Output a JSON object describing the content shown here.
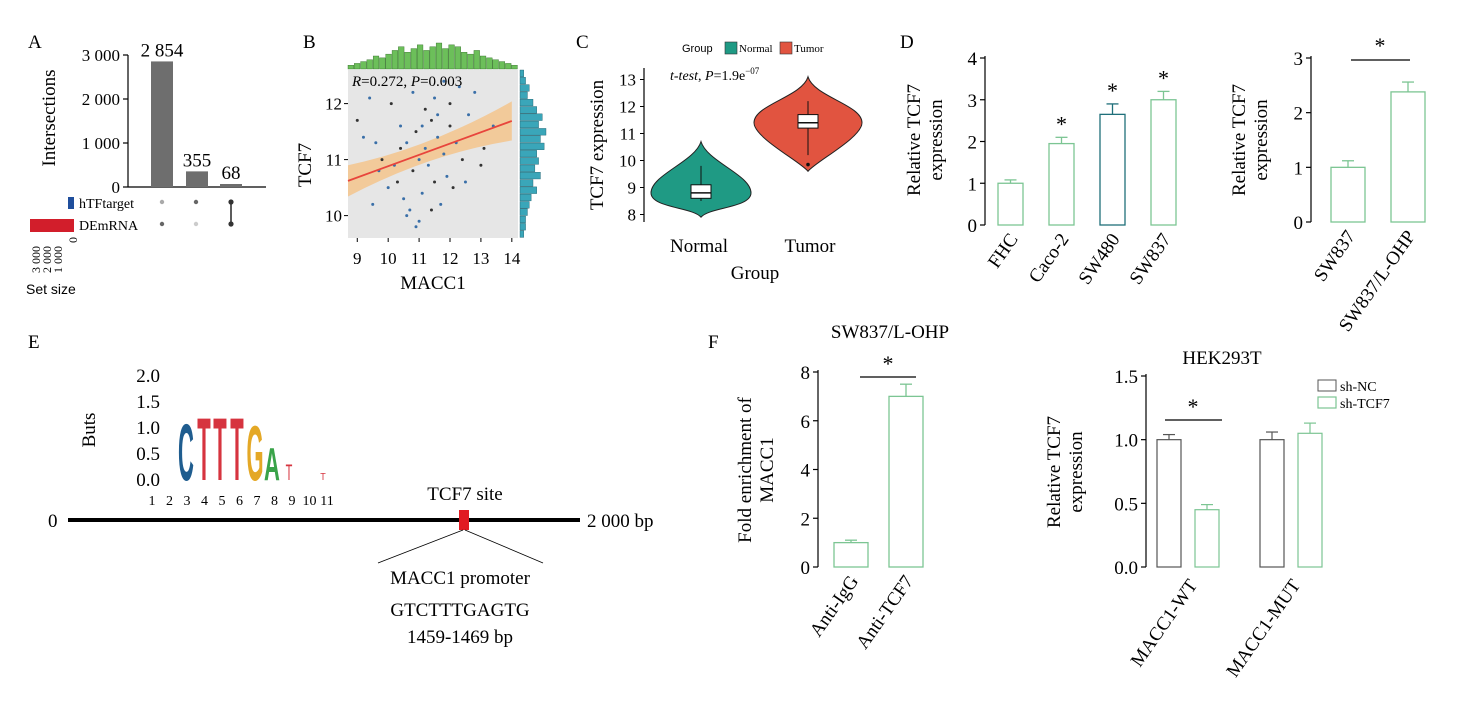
{
  "colors": {
    "bar_gray": "#6e6e6e",
    "htf_blue": "#1f4e9c",
    "demrna_red": "#d21e2b",
    "normal_teal": "#1f9a84",
    "tumor_red": "#e15440",
    "green_outline": "#7cc593",
    "dark_teal_outline": "#1f6f7a",
    "regression_red": "#e8453c",
    "ci_fill": "#f3c48c",
    "scatter_bg": "#e6e6e6",
    "hist_green": "#6cbf5a",
    "hist_teal": "#3aa6b9",
    "logo_C": "#1f5d8f",
    "logo_T": "#d6343f",
    "logo_G": "#e4a826",
    "logo_A": "#39a349",
    "tcf7_site": "#e11b22"
  },
  "chart_data": [
    {
      "panel": "A",
      "type": "bar",
      "ylabel": "Intersections",
      "ylim": [
        0,
        3000
      ],
      "yticks": [
        "0",
        "1 000",
        "2 000",
        "3 000"
      ],
      "categories": [
        "hTFtarget ∩ DEmRNA",
        "DEmRNA only",
        "hTFtarget only"
      ],
      "values": [
        2854,
        355,
        68
      ],
      "value_labels": [
        "2 854",
        "355",
        "68"
      ],
      "sets": [
        {
          "name": "hTFtarget",
          "size_color": "#1f4e9c"
        },
        {
          "name": "DEmRNA",
          "size_color": "#d21e2b"
        }
      ],
      "set_size_ticks": [
        "3 000",
        "2 000",
        "1 000",
        "0"
      ],
      "set_size_label": "Set size"
    },
    {
      "panel": "B",
      "type": "scatter",
      "xlabel": "MACC1",
      "ylabel": "TCF7",
      "xticks": [
        "9",
        "10",
        "11",
        "12",
        "13",
        "14"
      ],
      "yticks": [
        "10",
        "11",
        "12"
      ],
      "xlim": [
        8.7,
        14.2
      ],
      "ylim": [
        9.6,
        12.6
      ],
      "annotation": {
        "r": "0.272",
        "p": "0.003"
      },
      "regression": {
        "x": [
          8.7,
          14.0
        ],
        "y": [
          10.62,
          11.69
        ]
      },
      "points": [
        [
          10.1,
          12.0
        ],
        [
          10.4,
          11.6
        ],
        [
          10.6,
          11.3
        ],
        [
          10.9,
          11.5
        ],
        [
          11.0,
          11.0
        ],
        [
          11.2,
          11.2
        ],
        [
          11.4,
          11.7
        ],
        [
          11.6,
          11.4
        ],
        [
          11.8,
          11.1
        ],
        [
          12.0,
          11.6
        ],
        [
          12.2,
          11.3
        ],
        [
          11.5,
          12.1
        ],
        [
          10.3,
          10.6
        ],
        [
          10.5,
          10.3
        ],
        [
          10.7,
          10.1
        ],
        [
          10.8,
          10.8
        ],
        [
          11.1,
          10.4
        ],
        [
          11.3,
          10.9
        ],
        [
          11.5,
          10.6
        ],
        [
          11.7,
          10.2
        ],
        [
          11.9,
          10.7
        ],
        [
          12.1,
          10.5
        ],
        [
          10.2,
          10.9
        ],
        [
          10.0,
          10.5
        ],
        [
          9.8,
          11.0
        ],
        [
          9.6,
          11.3
        ],
        [
          9.2,
          11.4
        ],
        [
          9.0,
          11.7
        ],
        [
          9.4,
          12.1
        ],
        [
          9.7,
          10.8
        ],
        [
          12.4,
          11.0
        ],
        [
          12.6,
          11.8
        ],
        [
          12.8,
          12.2
        ],
        [
          13.1,
          11.2
        ],
        [
          13.4,
          11.6
        ],
        [
          12.3,
          12.3
        ],
        [
          11.2,
          11.9
        ],
        [
          10.8,
          12.2
        ],
        [
          11.6,
          11.8
        ],
        [
          12.0,
          12.0
        ],
        [
          10.6,
          10.0
        ],
        [
          11.0,
          9.9
        ],
        [
          11.4,
          10.1
        ],
        [
          10.9,
          9.8
        ],
        [
          12.5,
          10.6
        ],
        [
          13.0,
          10.9
        ],
        [
          9.5,
          10.2
        ],
        [
          11.8,
          12.4
        ],
        [
          10.4,
          11.2
        ],
        [
          11.1,
          11.6
        ]
      ],
      "hist_top": [
        2,
        3,
        4,
        5,
        7,
        6,
        8,
        10,
        12,
        9,
        11,
        13,
        10,
        12,
        14,
        11,
        13,
        12,
        9,
        8,
        10,
        7,
        6,
        5,
        4,
        3,
        2
      ],
      "hist_right": [
        2,
        3,
        5,
        4,
        7,
        9,
        12,
        10,
        14,
        11,
        13,
        9,
        10,
        8,
        11,
        7,
        9,
        6,
        5,
        4,
        3,
        3,
        2
      ]
    },
    {
      "panel": "C",
      "type": "violin",
      "xlabel": "Group",
      "ylabel": "TCF7 expression",
      "categories": [
        "Normal",
        "Tumor"
      ],
      "ylim": [
        7.5,
        13.5
      ],
      "yticks": [
        "8",
        "9",
        "10",
        "11",
        "12",
        "13"
      ],
      "legend_title": "Group",
      "series": [
        {
          "name": "Normal",
          "min": 7.9,
          "q1": 8.6,
          "median": 8.8,
          "q3": 9.1,
          "max": 10.7
        },
        {
          "name": "Tumor",
          "min": 9.6,
          "q1": 11.2,
          "median": 11.4,
          "q3": 11.7,
          "max": 13.1
        }
      ],
      "annotation": {
        "test": "t-test",
        "p_mantissa": "1.9e",
        "p_exponent": "−07"
      }
    },
    {
      "panel": "D",
      "type": "bar",
      "ylabel": "Relative TCF7 expression",
      "ylim": [
        0,
        4
      ],
      "yticks": [
        "0",
        "1",
        "2",
        "3",
        "4"
      ],
      "categories": [
        "FHC",
        "Caco-2",
        "SW480",
        "SW837"
      ],
      "values": [
        1.0,
        1.95,
        2.65,
        3.0
      ],
      "errors": [
        0.08,
        0.15,
        0.25,
        0.2
      ],
      "significant": [
        false,
        true,
        true,
        true
      ]
    },
    {
      "panel": "D2",
      "type": "bar",
      "ylabel": "Relative TCF7 expression",
      "ylim": [
        0,
        3
      ],
      "yticks": [
        "0",
        "1",
        "2",
        "3"
      ],
      "categories": [
        "SW837",
        "SW837/L-OHP"
      ],
      "values": [
        1.0,
        2.38
      ],
      "errors": [
        0.12,
        0.18
      ],
      "significance_marker": "*"
    },
    {
      "panel": "F1",
      "type": "bar",
      "title": "SW837/L-OHP",
      "ylabel": "Fold enrichment of MACC1",
      "ylim": [
        0,
        8
      ],
      "yticks": [
        "0",
        "2",
        "4",
        "6",
        "8"
      ],
      "categories": [
        "Anti-IgG",
        "Anti-TCF7"
      ],
      "values": [
        1.0,
        7.0
      ],
      "errors": [
        0.1,
        0.5
      ],
      "significance_marker": "*"
    },
    {
      "panel": "F2",
      "type": "bar",
      "title": "HEK293T",
      "ylabel": "Relative TCF7 expression",
      "ylim": [
        0,
        1.5
      ],
      "yticks": [
        "0.0",
        "0.5",
        "1.0",
        "1.5"
      ],
      "categories": [
        "MACC1-WT",
        "MACC1-MUT"
      ],
      "series": [
        {
          "name": "sh-NC",
          "values": [
            1.0,
            1.0
          ],
          "errors": [
            0.04,
            0.06
          ]
        },
        {
          "name": "sh-TCF7",
          "values": [
            0.45,
            1.05
          ],
          "errors": [
            0.04,
            0.08
          ]
        }
      ],
      "significance_marker": "*"
    }
  ],
  "panels": {
    "a": "A",
    "b": "B",
    "c": "C",
    "d": "D",
    "e": "E",
    "f": "F"
  },
  "panel_e": {
    "logo_ylabel": "Buts",
    "logo_yticks": [
      "2.0",
      "1.5",
      "1.0",
      "0.5",
      "0.0"
    ],
    "logo_positions": [
      "1",
      "2",
      "3",
      "4",
      "5",
      "6",
      "7",
      "8",
      "9",
      "10",
      "11"
    ],
    "logo_letters": [
      "C",
      "T",
      "T",
      "T",
      "G",
      "A"
    ],
    "start_label": "0",
    "end_label": "2 000 bp",
    "site_label": "TCF7 site",
    "promoter_label": "MACC1 promoter",
    "sequence": "GTCTTTGAGTG",
    "position": "1459-1469 bp"
  }
}
